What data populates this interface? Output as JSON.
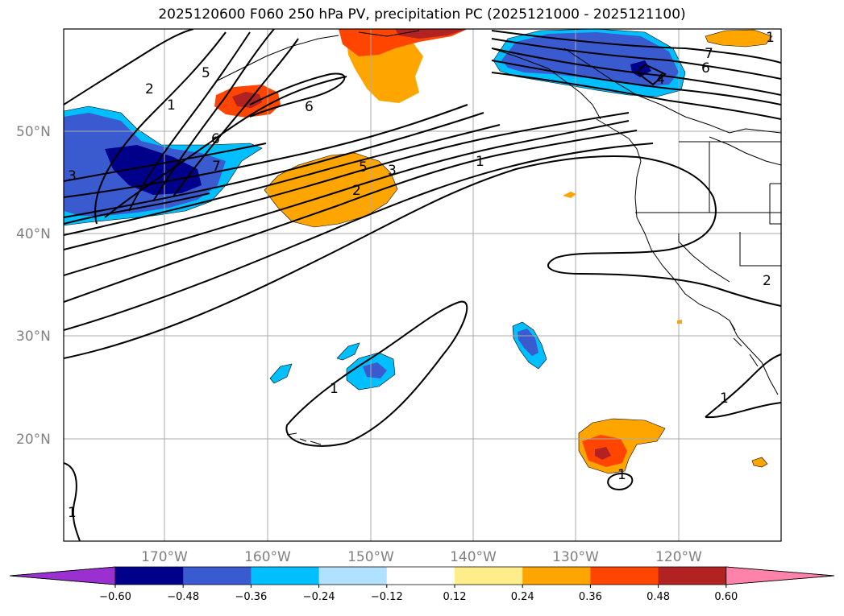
{
  "title": "2025120600 F060 250 hPa PV, precipitation PC (2025121000 - 2025121100)",
  "latitude_labels": [
    "50°N",
    "40°N",
    "30°N",
    "20°N"
  ],
  "longitude_labels": [
    "170°W",
    "160°W",
    "150°W",
    "140°W",
    "130°W",
    "120°W"
  ],
  "colorbar": {
    "ticks": [
      "−0.60",
      "−0.48",
      "−0.36",
      "−0.24",
      "−0.12",
      "0.12",
      "0.24",
      "0.36",
      "0.48",
      "0.60"
    ],
    "colors": [
      "#9b30d0",
      "#00008b",
      "#3a5bd0",
      "#00bfff",
      "#b0e2ff",
      "#ffffff",
      "#ffec8b",
      "#ffa500",
      "#ff4500",
      "#b22222",
      "#ff82ab"
    ]
  },
  "contour_labels": [
    "1",
    "1",
    "1",
    "1",
    "1",
    "1",
    "2",
    "2",
    "2",
    "3",
    "3",
    "4",
    "5",
    "5",
    "6",
    "6",
    "6",
    "7",
    "7",
    "1"
  ],
  "colors": {
    "orange": "#ffa500",
    "red_orange": "#ff4500",
    "dark_red": "#b22222",
    "light_blue": "#00bfff",
    "royal_blue": "#3a5bd0",
    "navy": "#00008b"
  }
}
